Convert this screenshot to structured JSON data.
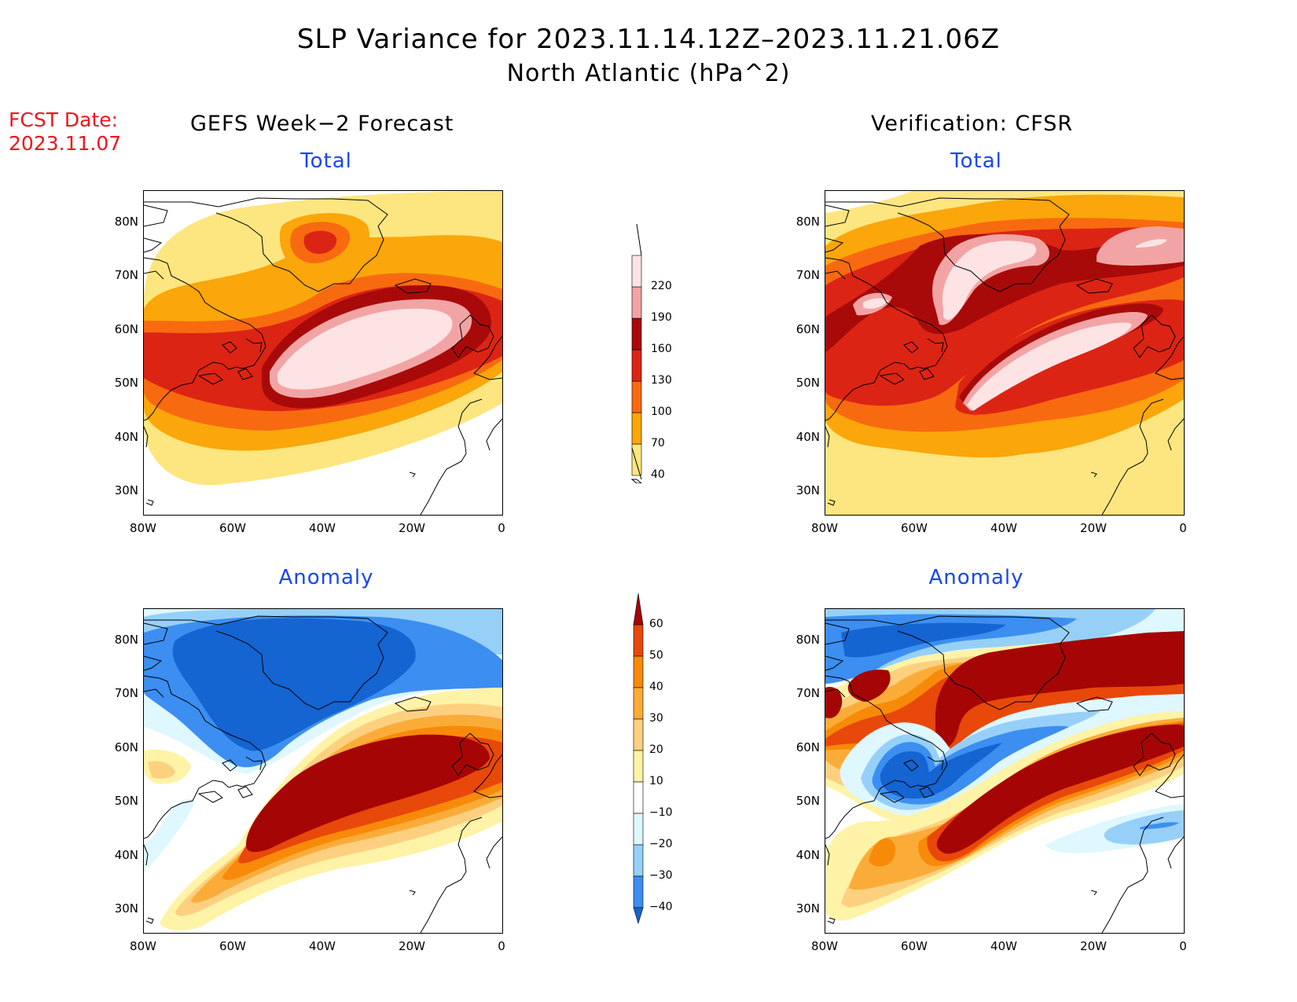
{
  "figure": {
    "title": "SLP Variance for 2023.11.14.12Z–2023.11.21.06Z",
    "subtitle": "North Atlantic (hPa^2)",
    "fcst_label": "FCST Date:",
    "fcst_date": "2023.11.07",
    "left_column": "GEFS Week−2 Forecast",
    "right_column": "Verification: CFSR"
  },
  "panels": {
    "top_left_title": "Total",
    "top_right_title": "Total",
    "bottom_left_title": "Anomaly",
    "bottom_right_title": "Anomaly"
  },
  "axes": {
    "lat_ticks": [
      "80N",
      "70N",
      "60N",
      "50N",
      "40N",
      "30N"
    ],
    "lon_ticks": [
      "80W",
      "60W",
      "40W",
      "20W",
      "0"
    ]
  },
  "colorbars": {
    "total": {
      "levels": [
        "40",
        "70",
        "100",
        "130",
        "160",
        "190",
        "220"
      ],
      "colors": [
        "#fde680",
        "#fba60a",
        "#f86a10",
        "#dc2414",
        "#a80a0a",
        "#f2a4a4",
        "#fde3e3"
      ]
    },
    "anomaly": {
      "levels": [
        "60",
        "50",
        "40",
        "30",
        "20",
        "10",
        "−10",
        "−20",
        "−30",
        "−40"
      ],
      "colors": [
        "#a50505",
        "#e8480a",
        "#f88a0a",
        "#fbac38",
        "#fdd080",
        "#fef3a6",
        "#ffffff",
        "#dff7ff",
        "#96d0f8",
        "#3c8ef0",
        "#1464d2"
      ]
    }
  },
  "chart_data": [
    {
      "type": "heatmap",
      "panel": "GEFS Week−2 Forecast — Total",
      "variable": "SLP variance (hPa^2)",
      "extent": {
        "lon": [
          -80,
          0
        ],
        "lat": [
          25,
          85
        ]
      },
      "features": [
        {
          "label": "main maximum >220",
          "center_lon": -33,
          "center_lat": 51
        },
        {
          "label": "secondary maximum 160–190",
          "center_lon": -40,
          "center_lat": 72
        }
      ]
    },
    {
      "type": "heatmap",
      "panel": "Verification: CFSR — Total",
      "variable": "SLP variance (hPa^2)",
      "extent": {
        "lon": [
          -80,
          0
        ],
        "lat": [
          25,
          85
        ]
      },
      "features": [
        {
          "label": "SW–NE band >220",
          "center_lon": -25,
          "center_lat": 50
        },
        {
          "label": "maximum >190 near Greenland",
          "center_lon": -42,
          "center_lat": 70
        },
        {
          "label": "maximum >190 NE",
          "center_lon": -6,
          "center_lat": 73
        }
      ]
    },
    {
      "type": "heatmap",
      "panel": "GEFS Week−2 Forecast — Anomaly",
      "variable": "SLP variance anomaly (hPa^2)",
      "extent": {
        "lon": [
          -80,
          0
        ],
        "lat": [
          25,
          85
        ]
      },
      "features": [
        {
          "label": "positive anomaly >60",
          "center_lon": -30,
          "center_lat": 50
        },
        {
          "label": "negative anomaly <−30",
          "center_lon": -48,
          "center_lat": 72
        }
      ]
    },
    {
      "type": "heatmap",
      "panel": "Verification: CFSR — Anomaly",
      "variable": "SLP variance anomaly (hPa^2)",
      "extent": {
        "lon": [
          -80,
          0
        ],
        "lat": [
          25,
          85
        ]
      },
      "features": [
        {
          "label": "positive anomaly >60 band",
          "center_lon": -25,
          "center_lat": 48
        },
        {
          "label": "positive anomaly >60 north",
          "center_lon": -20,
          "center_lat": 72
        },
        {
          "label": "negative anomaly <−40",
          "center_lon": -57,
          "center_lat": 51
        }
      ]
    }
  ]
}
